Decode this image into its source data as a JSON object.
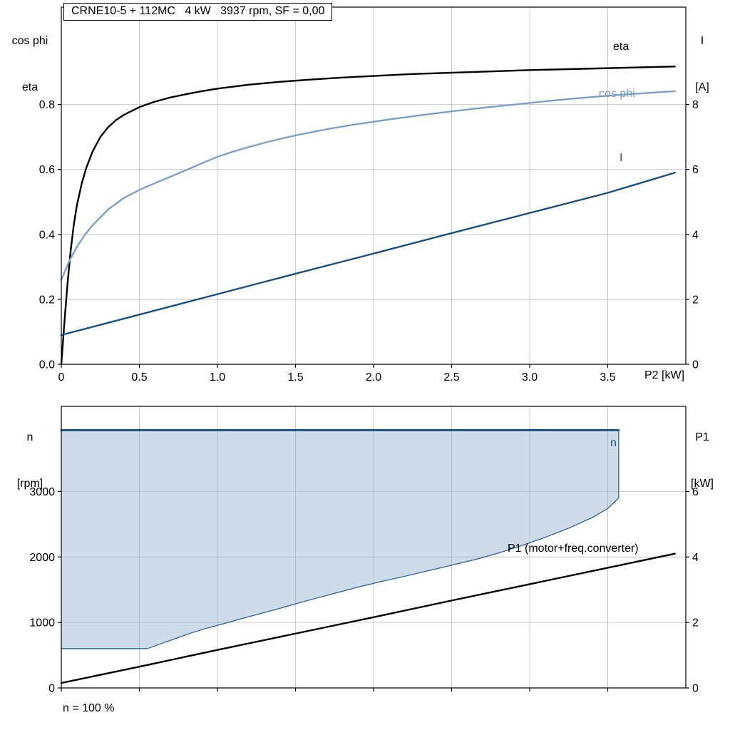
{
  "page": {
    "background": "#ffffff",
    "footnote": "n = 100 %"
  },
  "colors": {
    "grid": "#c9c9c9",
    "frame": "#000000",
    "cos_phi": "#7f9fc4",
    "dark_blue": "#1c4e7e",
    "area_fill": "rgba(150,176,207,0.45)",
    "area_edge": "#3c6a9c"
  },
  "chart_data": [
    {
      "name": "motor-performance-chart",
      "type": "line",
      "title": "CRNE10-5 + 112MC   4 kW   3937 rpm, SF = 0,00",
      "x_axis": {
        "label": "P2 [kW]",
        "range": [
          0,
          4
        ],
        "tick_values": [
          0,
          0.5,
          1,
          1.5,
          2,
          2.5,
          3,
          3.5
        ],
        "tick_labels": [
          "0",
          "0.5",
          "1.0",
          "1.5",
          "2.0",
          "2.5",
          "3.0",
          "3.5"
        ]
      },
      "left_axis": {
        "label_lines": [
          "cos phi",
          "eta"
        ],
        "range": [
          0,
          1.1
        ],
        "tick_values": [
          0,
          0.2,
          0.4,
          0.6,
          0.8
        ],
        "tick_labels": [
          "0.0",
          "0.2",
          "0.4",
          "0.6",
          "0.8"
        ]
      },
      "right_axis": {
        "label_lines": [
          "I",
          "[A]"
        ],
        "range": [
          0,
          11
        ],
        "tick_values": [
          0,
          2,
          4,
          6,
          8
        ],
        "tick_labels": [
          "0",
          "2",
          "4",
          "6",
          "8"
        ]
      },
      "series": [
        {
          "name": "eta",
          "axis": "left",
          "color": "#000000",
          "width": 2.4,
          "points": [
            [
              0,
              0
            ],
            [
              0.02,
              0.13
            ],
            [
              0.04,
              0.25
            ],
            [
              0.06,
              0.35
            ],
            [
              0.08,
              0.43
            ],
            [
              0.1,
              0.49
            ],
            [
              0.13,
              0.555
            ],
            [
              0.16,
              0.605
            ],
            [
              0.2,
              0.655
            ],
            [
              0.25,
              0.7
            ],
            [
              0.3,
              0.73
            ],
            [
              0.35,
              0.752
            ],
            [
              0.4,
              0.768
            ],
            [
              0.5,
              0.792
            ],
            [
              0.6,
              0.809
            ],
            [
              0.7,
              0.822
            ],
            [
              0.8,
              0.832
            ],
            [
              0.9,
              0.841
            ],
            [
              1,
              0.849
            ],
            [
              1.2,
              0.861
            ],
            [
              1.4,
              0.87
            ],
            [
              1.6,
              0.877
            ],
            [
              1.8,
              0.883
            ],
            [
              2,
              0.888
            ],
            [
              2.25,
              0.894
            ],
            [
              2.5,
              0.898
            ],
            [
              2.75,
              0.902
            ],
            [
              3,
              0.906
            ],
            [
              3.25,
              0.909
            ],
            [
              3.5,
              0.912
            ],
            [
              3.75,
              0.915
            ],
            [
              3.93,
              0.917
            ]
          ]
        },
        {
          "name": "cos phi",
          "axis": "left",
          "color": "#7f9fc4",
          "width": 2.4,
          "points": [
            [
              0,
              0.26
            ],
            [
              0.05,
              0.317
            ],
            [
              0.1,
              0.362
            ],
            [
              0.15,
              0.398
            ],
            [
              0.2,
              0.428
            ],
            [
              0.3,
              0.477
            ],
            [
              0.4,
              0.512
            ],
            [
              0.5,
              0.537
            ],
            [
              0.6,
              0.558
            ],
            [
              0.7,
              0.578
            ],
            [
              0.8,
              0.598
            ],
            [
              0.9,
              0.619
            ],
            [
              1,
              0.639
            ],
            [
              1.1,
              0.655
            ],
            [
              1.2,
              0.669
            ],
            [
              1.3,
              0.682
            ],
            [
              1.4,
              0.694
            ],
            [
              1.5,
              0.705
            ],
            [
              1.7,
              0.724
            ],
            [
              1.9,
              0.74
            ],
            [
              2.1,
              0.754
            ],
            [
              2.3,
              0.767
            ],
            [
              2.5,
              0.779
            ],
            [
              2.7,
              0.79
            ],
            [
              2.9,
              0.8
            ],
            [
              3.1,
              0.81
            ],
            [
              3.3,
              0.819
            ],
            [
              3.5,
              0.827
            ],
            [
              3.7,
              0.834
            ],
            [
              3.93,
              0.841
            ]
          ]
        },
        {
          "name": "I",
          "axis": "right",
          "color": "#1c4e7e",
          "width": 2.4,
          "points": [
            [
              0,
              0.9
            ],
            [
              0.5,
              1.53
            ],
            [
              1,
              2.16
            ],
            [
              1.5,
              2.79
            ],
            [
              2,
              3.41
            ],
            [
              2.5,
              4.04
            ],
            [
              3,
              4.66
            ],
            [
              3.5,
              5.28
            ],
            [
              3.93,
              5.9
            ]
          ]
        }
      ],
      "annotations": [
        {
          "text": "eta",
          "color": "#000000"
        },
        {
          "text": "cos phi",
          "color": "#7f9fc4"
        },
        {
          "text": "I",
          "color": "#1c4e7e"
        }
      ]
    },
    {
      "name": "speed-power-chart",
      "type": "line",
      "title": "",
      "x_axis": {
        "label": "",
        "range": [
          0,
          4
        ],
        "tick_values": [
          0,
          0.5,
          1,
          1.5,
          2,
          2.5,
          3,
          3.5
        ],
        "tick_labels": []
      },
      "left_axis": {
        "label_lines": [
          "n",
          "[rpm]"
        ],
        "range": [
          0,
          4300
        ],
        "tick_values": [
          0,
          1000,
          2000,
          3000
        ],
        "tick_labels": [
          "0",
          "1000",
          "2000",
          "3000"
        ]
      },
      "right_axis": {
        "label_lines": [
          "P1",
          "[kW]"
        ],
        "range": [
          0,
          8.6
        ],
        "tick_values": [
          0,
          2,
          4,
          6
        ],
        "tick_labels": [
          "0",
          "2",
          "4",
          "6"
        ]
      },
      "area": {
        "name": "speed-operating-range",
        "fill": "rgba(150,176,207,0.45)",
        "upper_value": 3937,
        "boundary_points": [
          [
            0,
            600
          ],
          [
            0.55,
            600
          ],
          [
            0.62,
            660
          ],
          [
            0.72,
            745
          ],
          [
            0.82,
            830
          ],
          [
            0.92,
            905
          ],
          [
            1,
            955
          ],
          [
            1.15,
            1055
          ],
          [
            1.3,
            1150
          ],
          [
            1.45,
            1250
          ],
          [
            1.6,
            1350
          ],
          [
            1.75,
            1445
          ],
          [
            1.9,
            1540
          ],
          [
            2.05,
            1625
          ],
          [
            2.2,
            1705
          ],
          [
            2.35,
            1790
          ],
          [
            2.5,
            1875
          ],
          [
            2.65,
            1960
          ],
          [
            2.8,
            2060
          ],
          [
            2.95,
            2175
          ],
          [
            3.1,
            2300
          ],
          [
            3.25,
            2440
          ],
          [
            3.4,
            2600
          ],
          [
            3.5,
            2740
          ],
          [
            3.57,
            2900
          ]
        ]
      },
      "series": [
        {
          "name": "n",
          "axis": "left",
          "color": "#1c4e7e",
          "width": 3,
          "points": [
            [
              0,
              3937
            ],
            [
              3.57,
              3937
            ]
          ]
        },
        {
          "name": "n-min-boundary",
          "axis": "left",
          "color": "#3c6a9c",
          "width": 1.4,
          "points": [
            [
              0,
              600
            ],
            [
              0.55,
              600
            ],
            [
              0.62,
              660
            ],
            [
              0.72,
              745
            ],
            [
              0.82,
              830
            ],
            [
              0.92,
              905
            ],
            [
              1,
              955
            ],
            [
              1.15,
              1055
            ],
            [
              1.3,
              1150
            ],
            [
              1.45,
              1250
            ],
            [
              1.6,
              1350
            ],
            [
              1.75,
              1445
            ],
            [
              1.9,
              1540
            ],
            [
              2.05,
              1625
            ],
            [
              2.2,
              1705
            ],
            [
              2.35,
              1790
            ],
            [
              2.5,
              1875
            ],
            [
              2.65,
              1960
            ],
            [
              2.8,
              2060
            ],
            [
              2.95,
              2175
            ],
            [
              3.1,
              2300
            ],
            [
              3.25,
              2440
            ],
            [
              3.4,
              2600
            ],
            [
              3.5,
              2740
            ],
            [
              3.57,
              2900
            ],
            [
              3.57,
              3937
            ]
          ]
        },
        {
          "name": "P1 (motor+freq.converter)",
          "axis": "right",
          "color": "#000000",
          "width": 2.4,
          "points": [
            [
              0,
              0.15
            ],
            [
              0.5,
              0.65
            ],
            [
              1,
              1.16
            ],
            [
              1.5,
              1.66
            ],
            [
              2,
              2.16
            ],
            [
              2.5,
              2.67
            ],
            [
              3,
              3.17
            ],
            [
              3.5,
              3.67
            ],
            [
              3.93,
              4.1
            ]
          ]
        }
      ],
      "annotations": [
        {
          "text": "n",
          "color": "#1c4e7e"
        },
        {
          "text": "P1 (motor+freq.converter)",
          "color": "#000000"
        }
      ]
    }
  ]
}
